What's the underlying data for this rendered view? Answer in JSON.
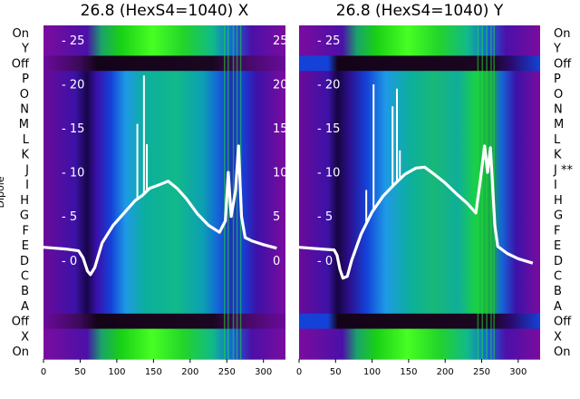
{
  "chart_data": [
    {
      "type": "heatmap",
      "title": "26.8 (HexS4=1040) X",
      "ylabel": "Dipole",
      "xlim": [
        0,
        330
      ],
      "x_ticks": [
        0,
        50,
        100,
        150,
        200,
        250,
        300
      ],
      "inner_ylim": [
        -4,
        27
      ],
      "inner_ticks": [
        "- 25",
        "- 20",
        "- 15",
        "- 10",
        "- 5",
        "- 0"
      ],
      "inner_tick_values": [
        25,
        20,
        15,
        10,
        5,
        0
      ],
      "right_inner_ticks": [
        "25",
        "20",
        "15",
        "10",
        "5",
        "0"
      ],
      "rows": [
        "On",
        "Y",
        "Off",
        "P",
        "O",
        "N",
        "M",
        "L",
        "K",
        "J",
        "I",
        "H",
        "G",
        "F",
        "E",
        "D",
        "C",
        "B",
        "A",
        "Off",
        "X",
        "On"
      ],
      "profile": [
        [
          0,
          1.5
        ],
        [
          30,
          1.3
        ],
        [
          48,
          1.1
        ],
        [
          54,
          0.3
        ],
        [
          60,
          -1.2
        ],
        [
          64,
          -1.6
        ],
        [
          70,
          -0.8
        ],
        [
          80,
          2
        ],
        [
          95,
          4
        ],
        [
          110,
          5.4
        ],
        [
          125,
          6.8
        ],
        [
          135,
          7.4
        ],
        [
          145,
          8.2
        ],
        [
          158,
          8.6
        ],
        [
          170,
          9
        ],
        [
          182,
          8.2
        ],
        [
          195,
          7
        ],
        [
          210,
          5.3
        ],
        [
          225,
          4
        ],
        [
          240,
          3.2
        ],
        [
          248,
          4.5
        ],
        [
          252,
          10
        ],
        [
          256,
          5
        ],
        [
          262,
          8
        ],
        [
          266,
          13
        ],
        [
          270,
          5
        ],
        [
          275,
          2.6
        ],
        [
          285,
          2.2
        ],
        [
          300,
          1.8
        ],
        [
          318,
          1.4
        ]
      ],
      "spikes": [
        [
          128,
          15.5
        ],
        [
          137,
          21
        ],
        [
          141,
          13.2
        ]
      ]
    },
    {
      "type": "heatmap",
      "title": "26.8 (HexS4=1040) Y",
      "xlim": [
        0,
        330
      ],
      "x_ticks": [
        0,
        50,
        100,
        150,
        200,
        250,
        300
      ],
      "inner_ylim": [
        -4,
        27
      ],
      "inner_ticks": [
        "- 25",
        "- 20",
        "- 15",
        "- 10",
        "- 5",
        "- 0"
      ],
      "inner_tick_values": [
        25,
        20,
        15,
        10,
        5,
        0
      ],
      "rows": [
        "On",
        "Y",
        "Off",
        "P",
        "O",
        "N",
        "M",
        "L",
        "K",
        "J **",
        "I",
        "H",
        "G",
        "F",
        "E",
        "D",
        "C",
        "B",
        "A",
        "Off",
        "X",
        "On"
      ],
      "profile": [
        [
          0,
          1.5
        ],
        [
          30,
          1.3
        ],
        [
          48,
          1.2
        ],
        [
          52,
          0.6
        ],
        [
          56,
          -1
        ],
        [
          60,
          -2
        ],
        [
          66,
          -1.8
        ],
        [
          72,
          0
        ],
        [
          85,
          3
        ],
        [
          100,
          5.5
        ],
        [
          115,
          7.3
        ],
        [
          130,
          8.6
        ],
        [
          145,
          9.8
        ],
        [
          160,
          10.5
        ],
        [
          172,
          10.6
        ],
        [
          185,
          9.8
        ],
        [
          200,
          8.8
        ],
        [
          215,
          7.6
        ],
        [
          230,
          6.5
        ],
        [
          242,
          5.4
        ],
        [
          248,
          9
        ],
        [
          254,
          13
        ],
        [
          258,
          10
        ],
        [
          262,
          12.8
        ],
        [
          268,
          4
        ],
        [
          272,
          1.6
        ],
        [
          285,
          0.8
        ],
        [
          300,
          0.2
        ],
        [
          320,
          -0.3
        ]
      ],
      "spikes": [
        [
          92,
          8
        ],
        [
          102,
          20
        ],
        [
          128,
          17.5
        ],
        [
          134,
          19.5
        ],
        [
          138,
          12.5
        ]
      ]
    }
  ],
  "colors": {
    "purple": "#7a0c9e",
    "indigo": "#3c12a8",
    "dark": "#1a0620",
    "blue": "#1442d8",
    "sky": "#1e9ae6",
    "teal": "#0caf9c",
    "green": "#19d016",
    "lime": "#47ff23",
    "line": "#ffffff"
  }
}
